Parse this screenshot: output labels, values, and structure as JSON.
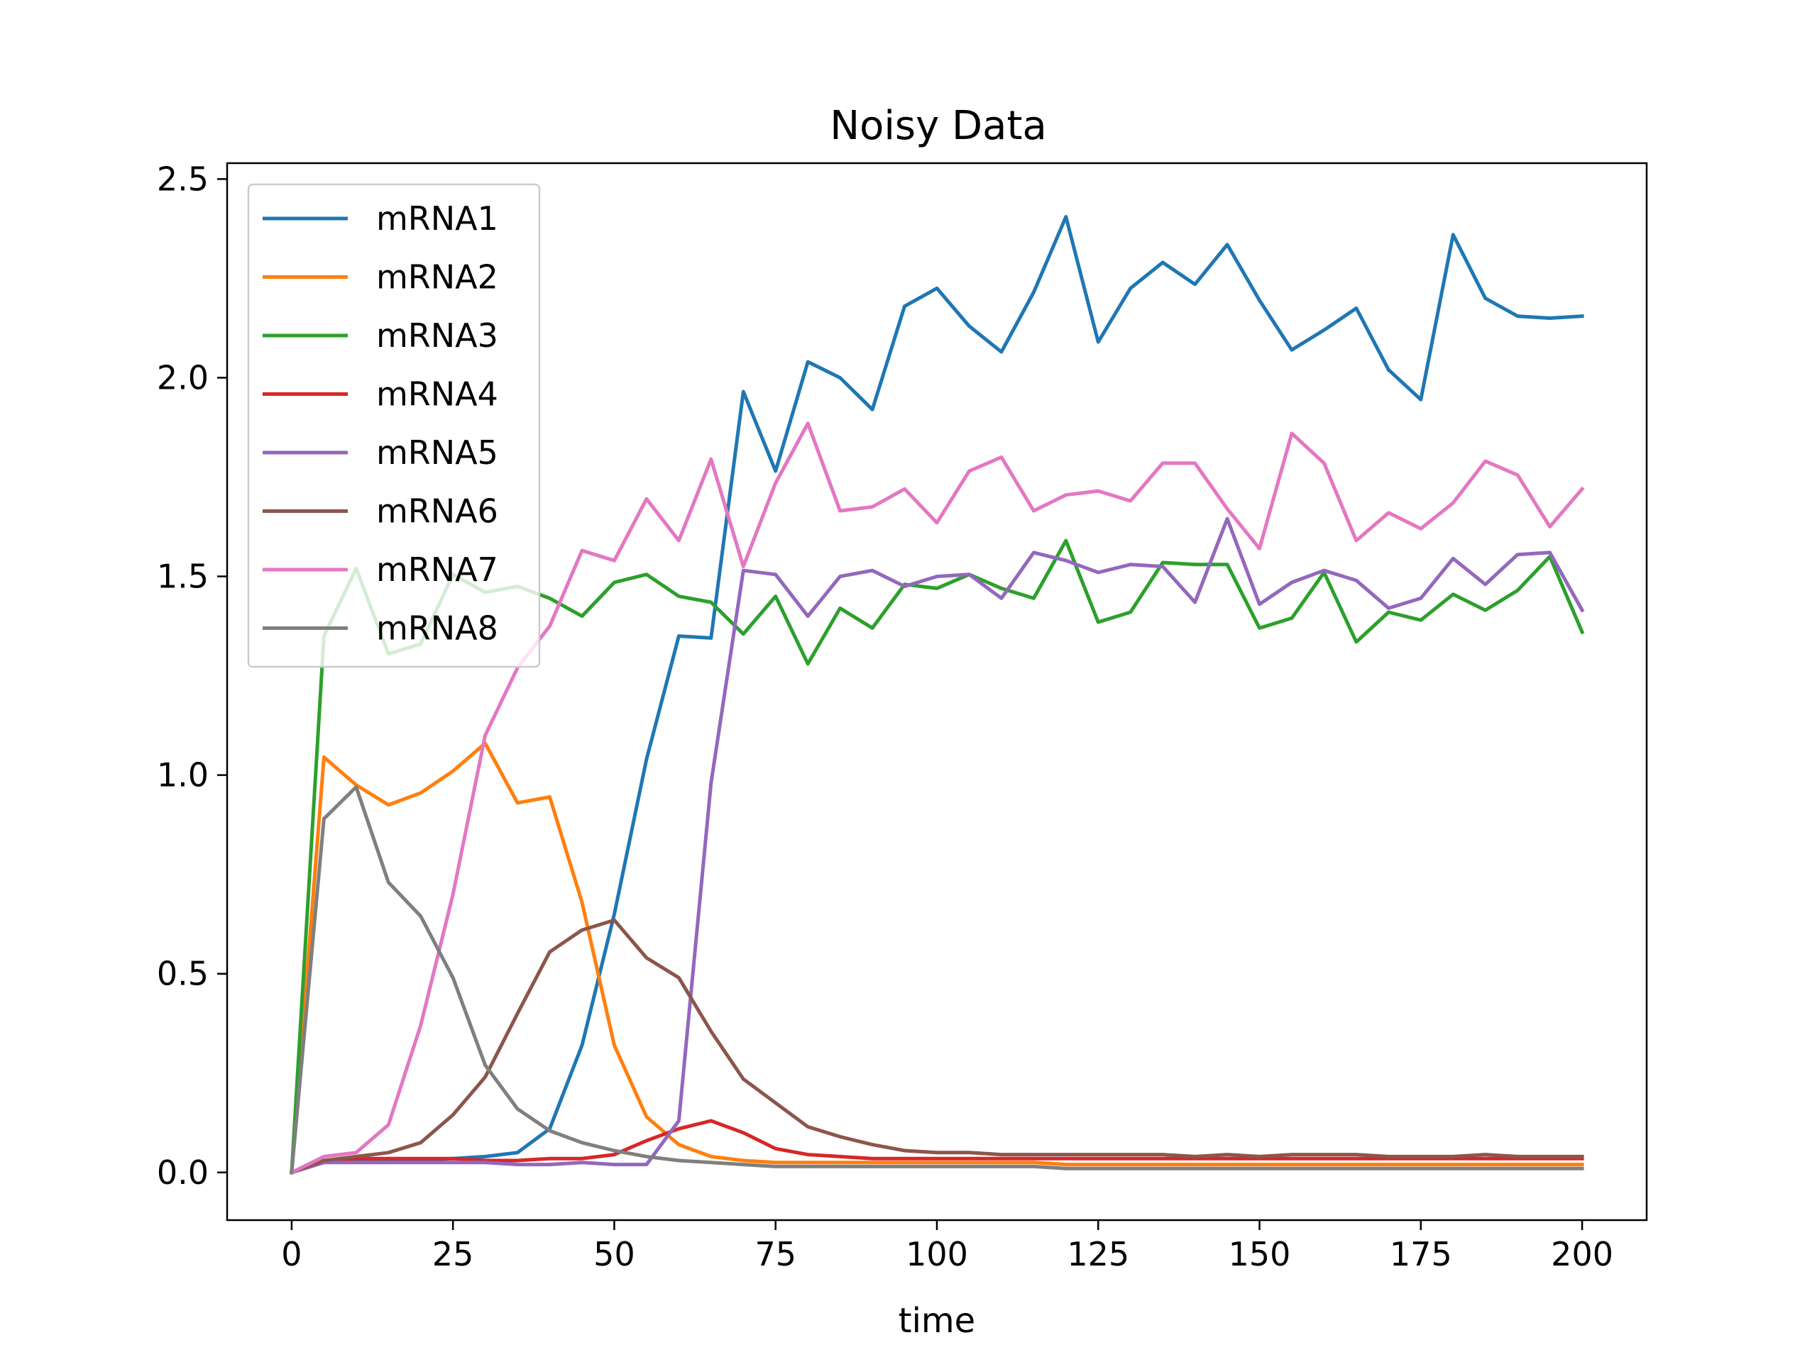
{
  "chart_data": {
    "type": "line",
    "title": "Noisy Data",
    "xlabel": "time",
    "ylabel": "",
    "xlim": [
      -10,
      210
    ],
    "ylim": [
      -0.12,
      2.54
    ],
    "xticks": [
      0,
      25,
      50,
      75,
      100,
      125,
      150,
      175,
      200
    ],
    "xtick_labels": [
      "0",
      "25",
      "50",
      "75",
      "100",
      "125",
      "150",
      "175",
      "200"
    ],
    "yticks": [
      0.0,
      0.5,
      1.0,
      1.5,
      2.0,
      2.5
    ],
    "ytick_labels": [
      "0.0",
      "0.5",
      "1.0",
      "1.5",
      "2.0",
      "2.5"
    ],
    "grid": false,
    "legend_position": "top-left",
    "x": [
      0,
      5,
      10,
      15,
      20,
      25,
      30,
      35,
      40,
      45,
      50,
      55,
      60,
      65,
      70,
      75,
      80,
      85,
      90,
      95,
      100,
      105,
      110,
      115,
      120,
      125,
      130,
      135,
      140,
      145,
      150,
      155,
      160,
      165,
      170,
      175,
      180,
      185,
      190,
      195,
      200
    ],
    "series": [
      {
        "name": "mRNA1",
        "color": "#1f77b4",
        "values": [
          0,
          0.03,
          0.03,
          0.03,
          0.03,
          0.035,
          0.04,
          0.05,
          0.11,
          0.32,
          0.65,
          1.04,
          1.35,
          1.345,
          1.965,
          1.765,
          2.04,
          2.0,
          1.92,
          2.18,
          2.225,
          2.13,
          2.065,
          2.215,
          2.405,
          2.09,
          2.225,
          2.29,
          2.235,
          2.335,
          2.195,
          2.07,
          2.12,
          2.175,
          2.02,
          1.945,
          2.36,
          2.2,
          2.155,
          2.15,
          2.155
        ]
      },
      {
        "name": "mRNA2",
        "color": "#ff7f0e",
        "values": [
          0,
          1.045,
          0.975,
          0.925,
          0.955,
          1.01,
          1.08,
          0.93,
          0.945,
          0.68,
          0.32,
          0.14,
          0.07,
          0.04,
          0.03,
          0.025,
          0.025,
          0.025,
          0.025,
          0.025,
          0.025,
          0.025,
          0.025,
          0.025,
          0.02,
          0.02,
          0.02,
          0.02,
          0.02,
          0.02,
          0.02,
          0.02,
          0.02,
          0.02,
          0.02,
          0.02,
          0.02,
          0.02,
          0.02,
          0.02,
          0.02
        ]
      },
      {
        "name": "mRNA3",
        "color": "#2ca02c",
        "values": [
          0,
          1.35,
          1.52,
          1.305,
          1.33,
          1.505,
          1.46,
          1.475,
          1.445,
          1.4,
          1.485,
          1.505,
          1.45,
          1.435,
          1.355,
          1.45,
          1.28,
          1.42,
          1.37,
          1.48,
          1.47,
          1.505,
          1.47,
          1.445,
          1.59,
          1.385,
          1.41,
          1.535,
          1.53,
          1.53,
          1.37,
          1.395,
          1.51,
          1.335,
          1.41,
          1.39,
          1.455,
          1.415,
          1.465,
          1.55,
          1.36
        ]
      },
      {
        "name": "mRNA4",
        "color": "#d62728",
        "values": [
          0,
          0.03,
          0.035,
          0.035,
          0.035,
          0.035,
          0.03,
          0.03,
          0.035,
          0.035,
          0.045,
          0.08,
          0.11,
          0.13,
          0.1,
          0.06,
          0.045,
          0.04,
          0.035,
          0.035,
          0.035,
          0.035,
          0.035,
          0.035,
          0.035,
          0.035,
          0.035,
          0.035,
          0.035,
          0.035,
          0.035,
          0.035,
          0.035,
          0.035,
          0.035,
          0.035,
          0.035,
          0.035,
          0.035,
          0.035,
          0.035
        ]
      },
      {
        "name": "mRNA5",
        "color": "#9467bd",
        "values": [
          0,
          0.025,
          0.025,
          0.025,
          0.025,
          0.025,
          0.025,
          0.02,
          0.02,
          0.025,
          0.02,
          0.02,
          0.13,
          0.98,
          1.515,
          1.505,
          1.4,
          1.5,
          1.515,
          1.475,
          1.5,
          1.505,
          1.445,
          1.56,
          1.54,
          1.51,
          1.53,
          1.525,
          1.435,
          1.645,
          1.43,
          1.485,
          1.515,
          1.49,
          1.42,
          1.445,
          1.545,
          1.48,
          1.555,
          1.56,
          1.415
        ]
      },
      {
        "name": "mRNA6",
        "color": "#8c564b",
        "values": [
          0,
          0.03,
          0.04,
          0.05,
          0.075,
          0.145,
          0.24,
          0.4,
          0.555,
          0.61,
          0.635,
          0.54,
          0.49,
          0.355,
          0.235,
          0.175,
          0.115,
          0.09,
          0.07,
          0.055,
          0.05,
          0.05,
          0.045,
          0.045,
          0.045,
          0.045,
          0.045,
          0.045,
          0.04,
          0.045,
          0.04,
          0.045,
          0.045,
          0.045,
          0.04,
          0.04,
          0.04,
          0.045,
          0.04,
          0.04,
          0.04
        ]
      },
      {
        "name": "mRNA7",
        "color": "#e377c2",
        "values": [
          0,
          0.04,
          0.05,
          0.12,
          0.37,
          0.7,
          1.1,
          1.27,
          1.375,
          1.565,
          1.54,
          1.695,
          1.59,
          1.795,
          1.525,
          1.735,
          1.885,
          1.665,
          1.675,
          1.72,
          1.635,
          1.765,
          1.8,
          1.665,
          1.705,
          1.715,
          1.69,
          1.785,
          1.785,
          1.67,
          1.57,
          1.86,
          1.785,
          1.59,
          1.66,
          1.62,
          1.685,
          1.79,
          1.755,
          1.625,
          1.72
        ]
      },
      {
        "name": "mRNA8",
        "color": "#7f7f7f",
        "values": [
          0,
          0.89,
          0.97,
          0.73,
          0.645,
          0.49,
          0.27,
          0.16,
          0.105,
          0.075,
          0.055,
          0.04,
          0.03,
          0.025,
          0.02,
          0.015,
          0.015,
          0.015,
          0.015,
          0.015,
          0.015,
          0.015,
          0.015,
          0.015,
          0.01,
          0.01,
          0.01,
          0.01,
          0.01,
          0.01,
          0.01,
          0.01,
          0.01,
          0.01,
          0.01,
          0.01,
          0.01,
          0.01,
          0.01,
          0.01,
          0.01
        ]
      }
    ]
  }
}
